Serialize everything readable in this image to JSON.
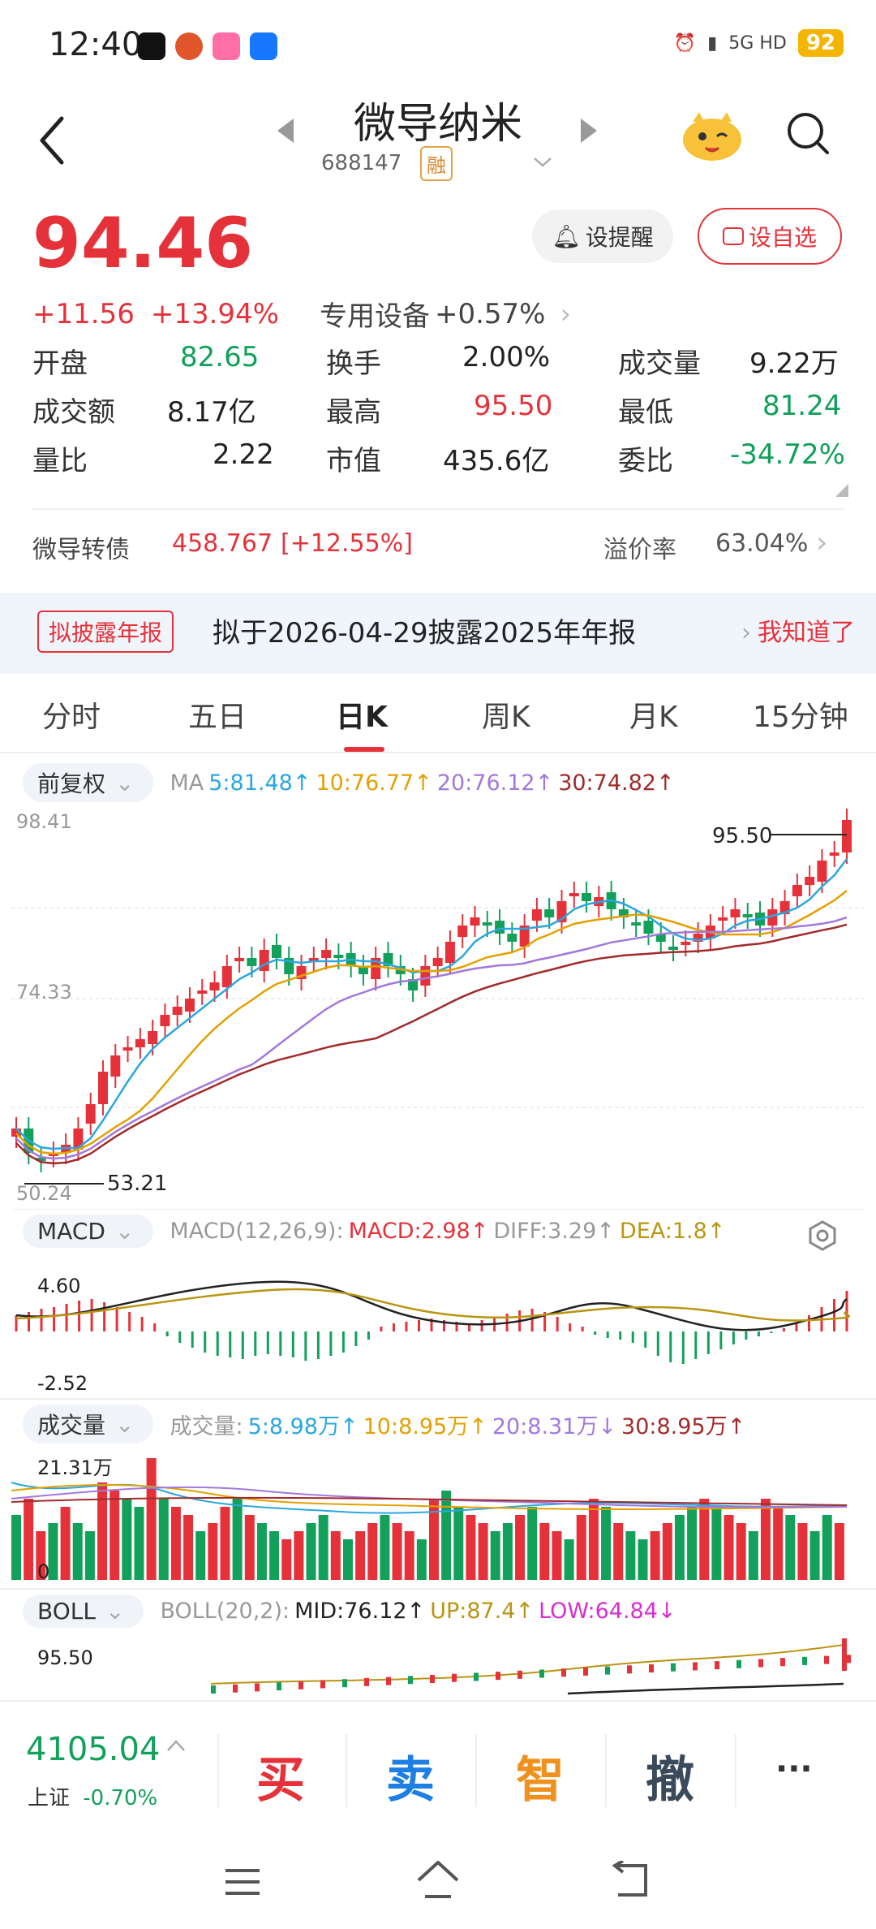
{
  "status_bar": {
    "time": "12:40",
    "network": "5G HD",
    "battery": "92",
    "icons": [
      "tiktok-icon",
      "game-icon",
      "app-icon",
      "alipay-icon",
      "alarm-icon",
      "vibrate-icon"
    ]
  },
  "header": {
    "stock_name": "微导纳米",
    "stock_code": "688147",
    "badge": "融"
  },
  "quote": {
    "price": "94.46",
    "change": "+11.56",
    "change_pct": "+13.94%",
    "sector": "专用设备",
    "sector_pct": "+0.57%",
    "remind_button": "设提醒",
    "favorite_button": "设自选"
  },
  "stats": {
    "open_label": "开盘",
    "open": "82.65",
    "turnover_rate_label": "换手",
    "turnover_rate": "2.00%",
    "volume_label": "成交量",
    "volume": "9.22万",
    "amount_label": "成交额",
    "amount": "8.17亿",
    "high_label": "最高",
    "high": "95.50",
    "low_label": "最低",
    "low": "81.24",
    "volume_ratio_label": "量比",
    "volume_ratio": "2.22",
    "market_cap_label": "市值",
    "market_cap": "435.6亿",
    "bid_ratio_label": "委比",
    "bid_ratio": "-34.72%"
  },
  "bond": {
    "label": "微导转债",
    "price": "458.767",
    "pct": "[+12.55%]",
    "premium_label": "溢价率",
    "premium": "63.04%"
  },
  "banner": {
    "tag": "拟披露年报",
    "text": "拟于2026-04-29披露2025年年报",
    "link": "我知道了"
  },
  "tabs": [
    "分时",
    "五日",
    "日K",
    "周K",
    "月K",
    "15分钟"
  ],
  "active_tab": "日K",
  "ma_panel": {
    "adjust": "前复权",
    "label": "MA",
    "ma5": "5:81.48↑",
    "ma10": "10:76.77↑",
    "ma20": "20:76.12↑",
    "ma30": "30:74.82↑",
    "y_top": "98.41",
    "y_mid": "74.33",
    "y_bottom": "50.24",
    "high_marker": "95.50",
    "low_marker": "53.21"
  },
  "macd_panel": {
    "label": "MACD",
    "params": "MACD(12,26,9):",
    "macd": "MACD:2.98↑",
    "diff": "DIFF:3.29↑",
    "dea": "DEA:1.8↑",
    "y_top": "4.60",
    "y_bottom": "-2.52"
  },
  "volume_panel": {
    "label": "成交量",
    "params": "成交量:",
    "v5": "5:8.98万↑",
    "v10": "10:8.95万↑",
    "v20": "20:8.31万↓",
    "v30": "30:8.95万↑",
    "y_top": "21.31万",
    "y_bottom": "0"
  },
  "boll_panel": {
    "label": "BOLL",
    "params": "BOLL(20,2):",
    "mid": "MID:76.12↑",
    "up": "UP:87.4↑",
    "low": "LOW:64.84↓",
    "y_top": "95.50"
  },
  "bottom_bar": {
    "index_value": "4105.04",
    "index_name": "上证",
    "index_pct": "-0.70%",
    "buy": "买",
    "sell": "卖",
    "smart": "智",
    "cancel": "撤",
    "more": "···"
  },
  "colors": {
    "up": "#e5323a",
    "down": "#12a05a",
    "ma5": "#2aa7df",
    "ma10": "#e2a100",
    "ma20": "#a279dc",
    "ma30": "#a12b2b"
  }
}
